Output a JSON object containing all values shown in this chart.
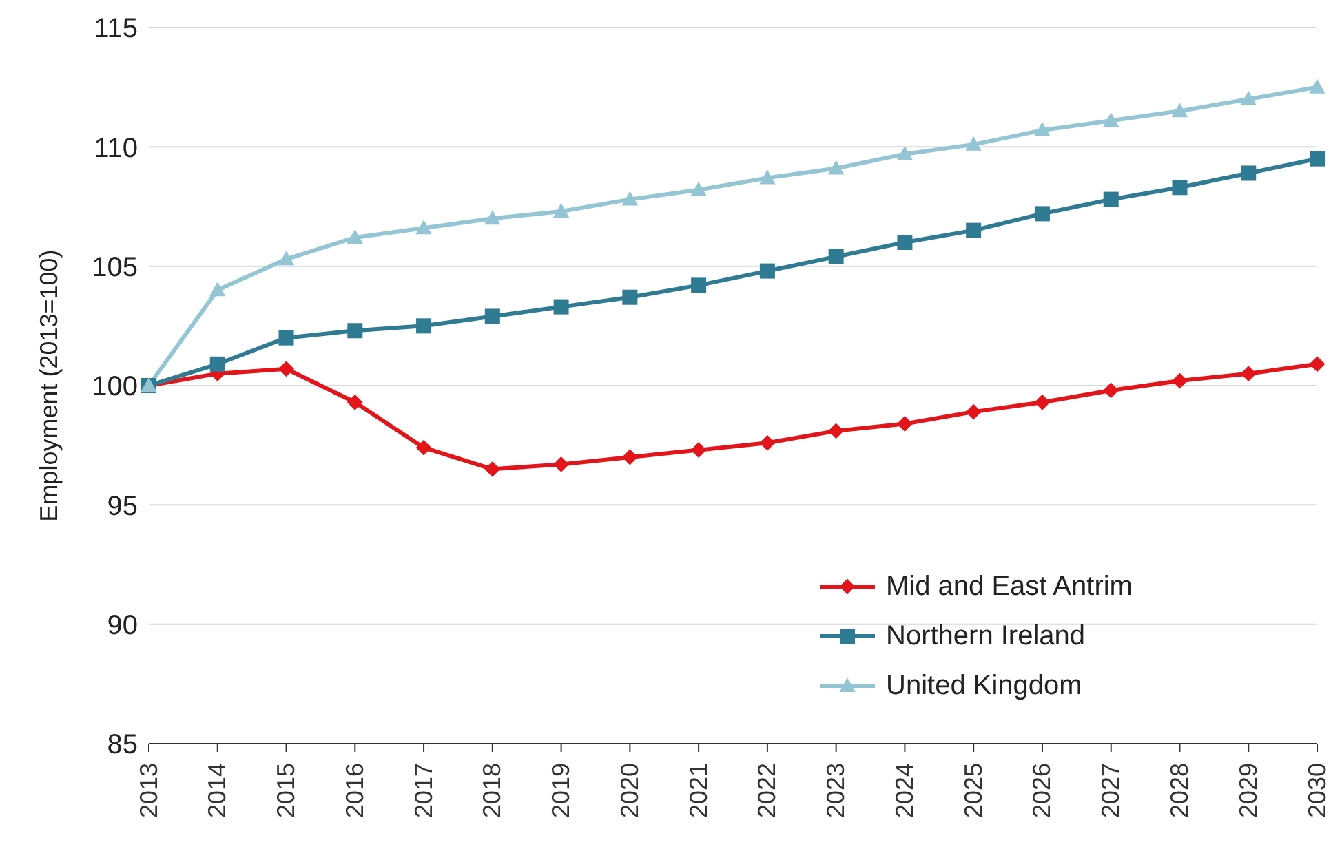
{
  "chart_data": {
    "type": "line",
    "ylabel": "Employment  (2013=100)",
    "categories": [
      "2013",
      "2014",
      "2015",
      "2016",
      "2017",
      "2018",
      "2019",
      "2020",
      "2021",
      "2022",
      "2023",
      "2024",
      "2025",
      "2026",
      "2027",
      "2028",
      "2029",
      "2030"
    ],
    "series": [
      {
        "name": "Mid and East Antrim",
        "color": "#e3151a",
        "marker": "diamond",
        "values": [
          100,
          100.5,
          100.7,
          99.3,
          97.4,
          96.5,
          96.7,
          97.0,
          97.3,
          97.6,
          98.1,
          98.4,
          98.9,
          99.3,
          99.8,
          100.2,
          100.5,
          100.9
        ]
      },
      {
        "name": "Northern Ireland",
        "color": "#2e7b93",
        "marker": "square",
        "values": [
          100,
          100.9,
          102.0,
          102.3,
          102.5,
          102.9,
          103.3,
          103.7,
          104.2,
          104.8,
          105.4,
          106.0,
          106.5,
          107.2,
          107.8,
          108.3,
          108.9,
          109.5
        ]
      },
      {
        "name": "United Kingdom",
        "color": "#93c5d5",
        "marker": "triangle",
        "values": [
          100,
          104.0,
          105.3,
          106.2,
          106.6,
          107.0,
          107.3,
          107.8,
          108.2,
          108.7,
          109.1,
          109.7,
          110.1,
          110.7,
          111.1,
          111.5,
          112.0,
          112.5
        ]
      }
    ],
    "ylim": [
      85,
      115
    ],
    "yticks": [
      85,
      90,
      95,
      100,
      105,
      110,
      115
    ],
    "grid": "y",
    "legend": "bottom right",
    "line_style": "solid"
  }
}
